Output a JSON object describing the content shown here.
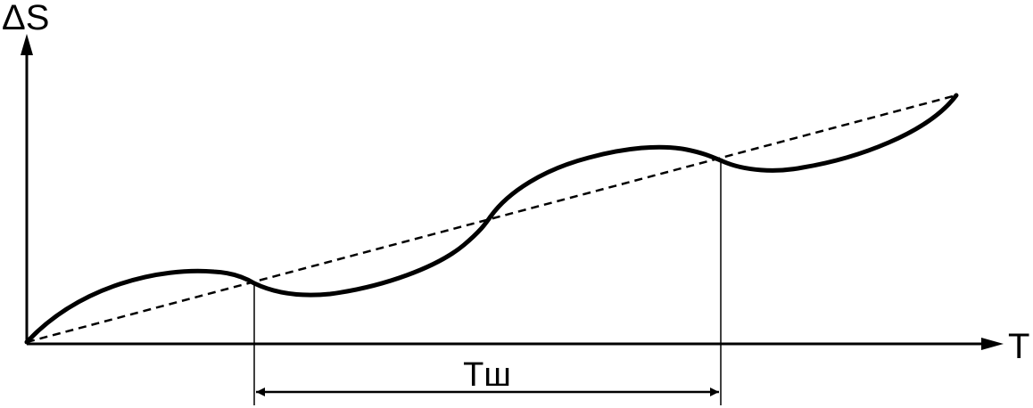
{
  "diagram": {
    "y_axis_label": "ΔS",
    "x_axis_label": "T",
    "period_label": "Tш",
    "colors": {
      "ink": "#000000",
      "background": "#ffffff"
    }
  }
}
